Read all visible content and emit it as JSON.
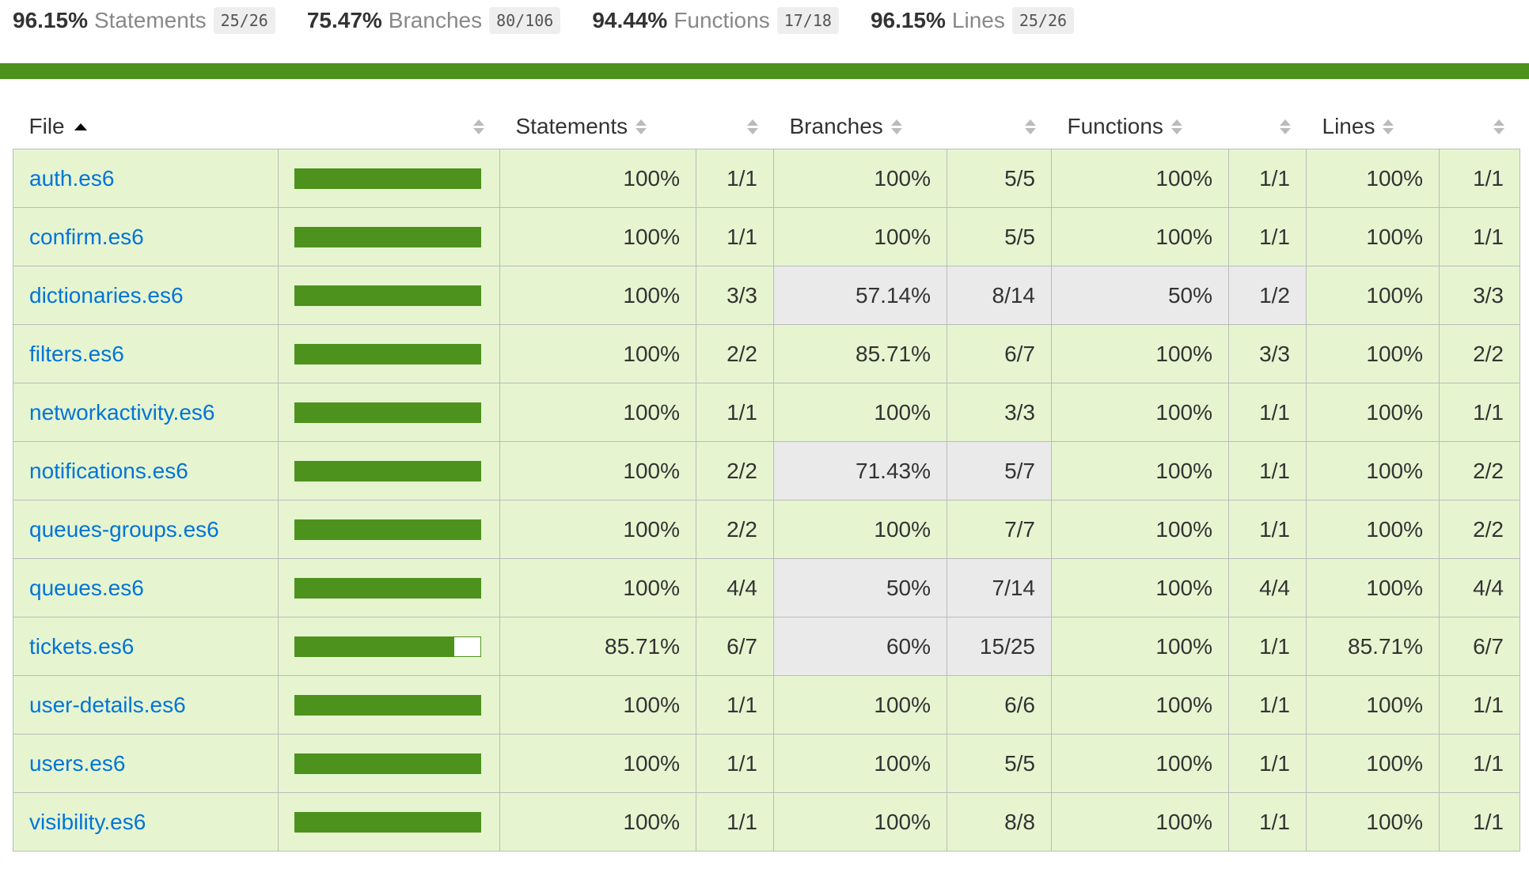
{
  "summary": [
    {
      "pct": "96.15%",
      "label": "Statements",
      "fraction": "25/26"
    },
    {
      "pct": "75.47%",
      "label": "Branches",
      "fraction": "80/106"
    },
    {
      "pct": "94.44%",
      "label": "Functions",
      "fraction": "17/18"
    },
    {
      "pct": "96.15%",
      "label": "Lines",
      "fraction": "25/26"
    }
  ],
  "colors": {
    "status": "#4d921d",
    "high_bg": "#e6f5d0",
    "low_bg": "#eaeaea",
    "link": "#0074D9"
  },
  "icons": {
    "sort_active": "caret-up-icon",
    "sortable": "sort-icon"
  },
  "columns": {
    "file": "File",
    "statements": "Statements",
    "branches": "Branches",
    "functions": "Functions",
    "lines": "Lines"
  },
  "rows": [
    {
      "file": "auth.es6",
      "coverage": 1.0,
      "statements": {
        "pct": "100%",
        "frac": "1/1",
        "status": "high"
      },
      "branches": {
        "pct": "100%",
        "frac": "5/5",
        "status": "high"
      },
      "functions": {
        "pct": "100%",
        "frac": "1/1",
        "status": "high"
      },
      "lines": {
        "pct": "100%",
        "frac": "1/1",
        "status": "high"
      }
    },
    {
      "file": "confirm.es6",
      "coverage": 1.0,
      "statements": {
        "pct": "100%",
        "frac": "1/1",
        "status": "high"
      },
      "branches": {
        "pct": "100%",
        "frac": "5/5",
        "status": "high"
      },
      "functions": {
        "pct": "100%",
        "frac": "1/1",
        "status": "high"
      },
      "lines": {
        "pct": "100%",
        "frac": "1/1",
        "status": "high"
      }
    },
    {
      "file": "dictionaries.es6",
      "coverage": 1.0,
      "statements": {
        "pct": "100%",
        "frac": "3/3",
        "status": "high"
      },
      "branches": {
        "pct": "57.14%",
        "frac": "8/14",
        "status": "low"
      },
      "functions": {
        "pct": "50%",
        "frac": "1/2",
        "status": "low"
      },
      "lines": {
        "pct": "100%",
        "frac": "3/3",
        "status": "high"
      }
    },
    {
      "file": "filters.es6",
      "coverage": 1.0,
      "statements": {
        "pct": "100%",
        "frac": "2/2",
        "status": "high"
      },
      "branches": {
        "pct": "85.71%",
        "frac": "6/7",
        "status": "high"
      },
      "functions": {
        "pct": "100%",
        "frac": "3/3",
        "status": "high"
      },
      "lines": {
        "pct": "100%",
        "frac": "2/2",
        "status": "high"
      }
    },
    {
      "file": "networkactivity.es6",
      "coverage": 1.0,
      "statements": {
        "pct": "100%",
        "frac": "1/1",
        "status": "high"
      },
      "branches": {
        "pct": "100%",
        "frac": "3/3",
        "status": "high"
      },
      "functions": {
        "pct": "100%",
        "frac": "1/1",
        "status": "high"
      },
      "lines": {
        "pct": "100%",
        "frac": "1/1",
        "status": "high"
      }
    },
    {
      "file": "notifications.es6",
      "coverage": 1.0,
      "statements": {
        "pct": "100%",
        "frac": "2/2",
        "status": "high"
      },
      "branches": {
        "pct": "71.43%",
        "frac": "5/7",
        "status": "low"
      },
      "functions": {
        "pct": "100%",
        "frac": "1/1",
        "status": "high"
      },
      "lines": {
        "pct": "100%",
        "frac": "2/2",
        "status": "high"
      }
    },
    {
      "file": "queues-groups.es6",
      "coverage": 1.0,
      "statements": {
        "pct": "100%",
        "frac": "2/2",
        "status": "high"
      },
      "branches": {
        "pct": "100%",
        "frac": "7/7",
        "status": "high"
      },
      "functions": {
        "pct": "100%",
        "frac": "1/1",
        "status": "high"
      },
      "lines": {
        "pct": "100%",
        "frac": "2/2",
        "status": "high"
      }
    },
    {
      "file": "queues.es6",
      "coverage": 1.0,
      "statements": {
        "pct": "100%",
        "frac": "4/4",
        "status": "high"
      },
      "branches": {
        "pct": "50%",
        "frac": "7/14",
        "status": "low"
      },
      "functions": {
        "pct": "100%",
        "frac": "4/4",
        "status": "high"
      },
      "lines": {
        "pct": "100%",
        "frac": "4/4",
        "status": "high"
      }
    },
    {
      "file": "tickets.es6",
      "coverage": 0.8571,
      "statements": {
        "pct": "85.71%",
        "frac": "6/7",
        "status": "high"
      },
      "branches": {
        "pct": "60%",
        "frac": "15/25",
        "status": "low"
      },
      "functions": {
        "pct": "100%",
        "frac": "1/1",
        "status": "high"
      },
      "lines": {
        "pct": "85.71%",
        "frac": "6/7",
        "status": "high"
      }
    },
    {
      "file": "user-details.es6",
      "coverage": 1.0,
      "statements": {
        "pct": "100%",
        "frac": "1/1",
        "status": "high"
      },
      "branches": {
        "pct": "100%",
        "frac": "6/6",
        "status": "high"
      },
      "functions": {
        "pct": "100%",
        "frac": "1/1",
        "status": "high"
      },
      "lines": {
        "pct": "100%",
        "frac": "1/1",
        "status": "high"
      }
    },
    {
      "file": "users.es6",
      "coverage": 1.0,
      "statements": {
        "pct": "100%",
        "frac": "1/1",
        "status": "high"
      },
      "branches": {
        "pct": "100%",
        "frac": "5/5",
        "status": "high"
      },
      "functions": {
        "pct": "100%",
        "frac": "1/1",
        "status": "high"
      },
      "lines": {
        "pct": "100%",
        "frac": "1/1",
        "status": "high"
      }
    },
    {
      "file": "visibility.es6",
      "coverage": 1.0,
      "statements": {
        "pct": "100%",
        "frac": "1/1",
        "status": "high"
      },
      "branches": {
        "pct": "100%",
        "frac": "8/8",
        "status": "high"
      },
      "functions": {
        "pct": "100%",
        "frac": "1/1",
        "status": "high"
      },
      "lines": {
        "pct": "100%",
        "frac": "1/1",
        "status": "high"
      }
    }
  ]
}
